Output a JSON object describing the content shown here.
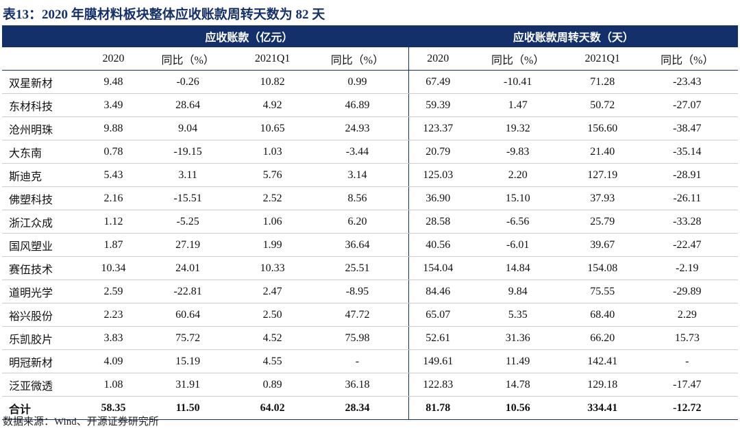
{
  "title": "表13：2020 年膜材料板块整体应收账款周转天数为 82 天",
  "table": {
    "group_headers": [
      "应收账款（亿元）",
      "应收账款周转天数（天）"
    ],
    "columns": [
      "2020",
      "同比（%）",
      "2021Q1",
      "同比（%）",
      "2020",
      "同比（%）",
      "2021Q1",
      "同比（%）"
    ],
    "rows": [
      {
        "name": "双星新材",
        "cells": [
          "9.48",
          "-0.26",
          "10.82",
          "0.99",
          "67.49",
          "-10.41",
          "71.28",
          "-23.43"
        ]
      },
      {
        "name": "东材科技",
        "cells": [
          "3.49",
          "28.64",
          "4.92",
          "46.89",
          "59.39",
          "1.47",
          "50.72",
          "-27.07"
        ]
      },
      {
        "name": "沧州明珠",
        "cells": [
          "9.88",
          "9.04",
          "10.65",
          "24.93",
          "123.37",
          "19.32",
          "156.60",
          "-38.47"
        ]
      },
      {
        "name": "大东南",
        "cells": [
          "0.78",
          "-19.15",
          "1.03",
          "-3.44",
          "20.79",
          "-9.83",
          "21.40",
          "-35.14"
        ]
      },
      {
        "name": "斯迪克",
        "cells": [
          "5.43",
          "3.11",
          "5.76",
          "3.14",
          "125.03",
          "2.20",
          "127.19",
          "-28.91"
        ]
      },
      {
        "name": "佛塑科技",
        "cells": [
          "2.16",
          "-15.51",
          "2.52",
          "8.56",
          "36.90",
          "15.10",
          "37.93",
          "-26.11"
        ]
      },
      {
        "name": "浙江众成",
        "cells": [
          "1.12",
          "-5.25",
          "1.06",
          "6.20",
          "28.58",
          "-6.56",
          "25.79",
          "-33.28"
        ]
      },
      {
        "name": "国风塑业",
        "cells": [
          "1.87",
          "27.19",
          "1.99",
          "36.64",
          "40.56",
          "-6.01",
          "39.67",
          "-22.47"
        ]
      },
      {
        "name": "赛伍技术",
        "cells": [
          "10.34",
          "24.01",
          "10.33",
          "25.51",
          "154.04",
          "14.84",
          "154.08",
          "-2.19"
        ]
      },
      {
        "name": "道明光学",
        "cells": [
          "2.59",
          "-22.81",
          "2.47",
          "-8.95",
          "84.46",
          "9.84",
          "75.55",
          "-29.89"
        ]
      },
      {
        "name": "裕兴股份",
        "cells": [
          "2.23",
          "60.64",
          "2.50",
          "47.72",
          "65.07",
          "5.35",
          "68.40",
          "2.29"
        ]
      },
      {
        "name": "乐凯胶片",
        "cells": [
          "3.83",
          "75.72",
          "4.52",
          "75.98",
          "52.61",
          "31.36",
          "66.20",
          "15.73"
        ]
      },
      {
        "name": "明冠新材",
        "cells": [
          "4.09",
          "15.19",
          "4.55",
          "-",
          "149.61",
          "11.49",
          "142.41",
          "-"
        ]
      },
      {
        "name": "泛亚微透",
        "cells": [
          "1.08",
          "31.91",
          "0.89",
          "36.18",
          "122.83",
          "14.78",
          "129.18",
          "-17.47"
        ]
      }
    ],
    "total": {
      "name": "合计",
      "cells": [
        "58.35",
        "11.50",
        "64.02",
        "28.34",
        "81.78",
        "10.56",
        "334.41",
        "-12.72"
      ]
    }
  },
  "source": "数据来源：Wind、开源证券研究所"
}
